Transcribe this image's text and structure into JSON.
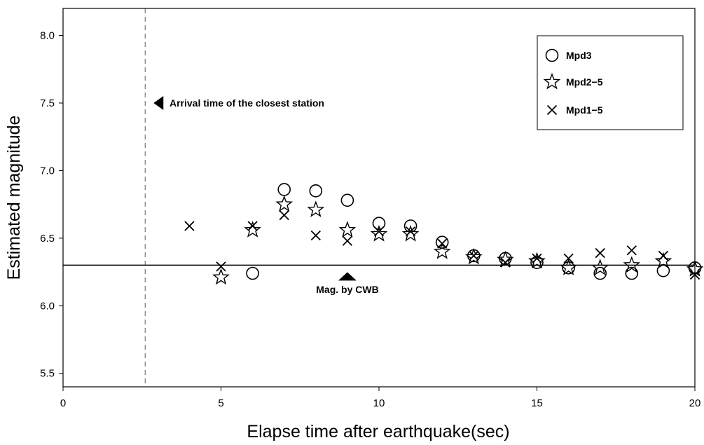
{
  "chart_data": {
    "type": "scatter",
    "xlabel": "Elapse time after earthquake(sec)",
    "ylabel": "Estimated magnitude",
    "xlim": [
      0,
      20
    ],
    "ylim": [
      5.4,
      8.2
    ],
    "x_ticks": [
      "0",
      "5",
      "10",
      "15",
      "20"
    ],
    "y_ticks": [
      "5.5",
      "6.0",
      "6.5",
      "7.0",
      "7.5",
      "8.0"
    ],
    "grid": false,
    "legend_position": "top-right",
    "series": [
      {
        "name": "Mpd3",
        "marker": "circle",
        "points": [
          [
            6,
            6.24
          ],
          [
            7,
            6.86
          ],
          [
            8,
            6.85
          ],
          [
            9,
            6.78
          ],
          [
            10,
            6.61
          ],
          [
            11,
            6.59
          ],
          [
            12,
            6.47
          ],
          [
            13,
            6.37
          ],
          [
            14,
            6.35
          ],
          [
            15,
            6.32
          ],
          [
            16,
            6.28
          ],
          [
            17,
            6.24
          ],
          [
            18,
            6.24
          ],
          [
            19,
            6.26
          ],
          [
            20,
            6.28
          ]
        ]
      },
      {
        "name": "Mpd2−5",
        "marker": "star",
        "points": [
          [
            5,
            6.21
          ],
          [
            6,
            6.56
          ],
          [
            7,
            6.75
          ],
          [
            8,
            6.71
          ],
          [
            9,
            6.56
          ],
          [
            10,
            6.53
          ],
          [
            11,
            6.53
          ],
          [
            12,
            6.4
          ],
          [
            13,
            6.36
          ],
          [
            14,
            6.34
          ],
          [
            15,
            6.33
          ],
          [
            16,
            6.28
          ],
          [
            17,
            6.28
          ],
          [
            18,
            6.3
          ],
          [
            19,
            6.33
          ],
          [
            20,
            6.27
          ]
        ]
      },
      {
        "name": "Mpd1−5",
        "marker": "x",
        "points": [
          [
            4,
            6.59
          ],
          [
            5,
            6.29
          ],
          [
            6,
            6.59
          ],
          [
            7,
            6.67
          ],
          [
            8,
            6.52
          ],
          [
            9,
            6.48
          ],
          [
            10,
            6.55
          ],
          [
            11,
            6.55
          ],
          [
            12,
            6.46
          ],
          [
            13,
            6.37
          ],
          [
            14,
            6.32
          ],
          [
            15,
            6.35
          ],
          [
            16,
            6.35
          ],
          [
            17,
            6.39
          ],
          [
            18,
            6.41
          ],
          [
            19,
            6.37
          ],
          [
            20,
            6.23
          ]
        ]
      }
    ],
    "reference_line": {
      "y": 6.3,
      "label": "Mag. by CWB",
      "marker_x": 9
    },
    "arrival_line": {
      "x": 2.6,
      "label": "Arrival time of the closest station",
      "marker_y": 7.5
    }
  }
}
